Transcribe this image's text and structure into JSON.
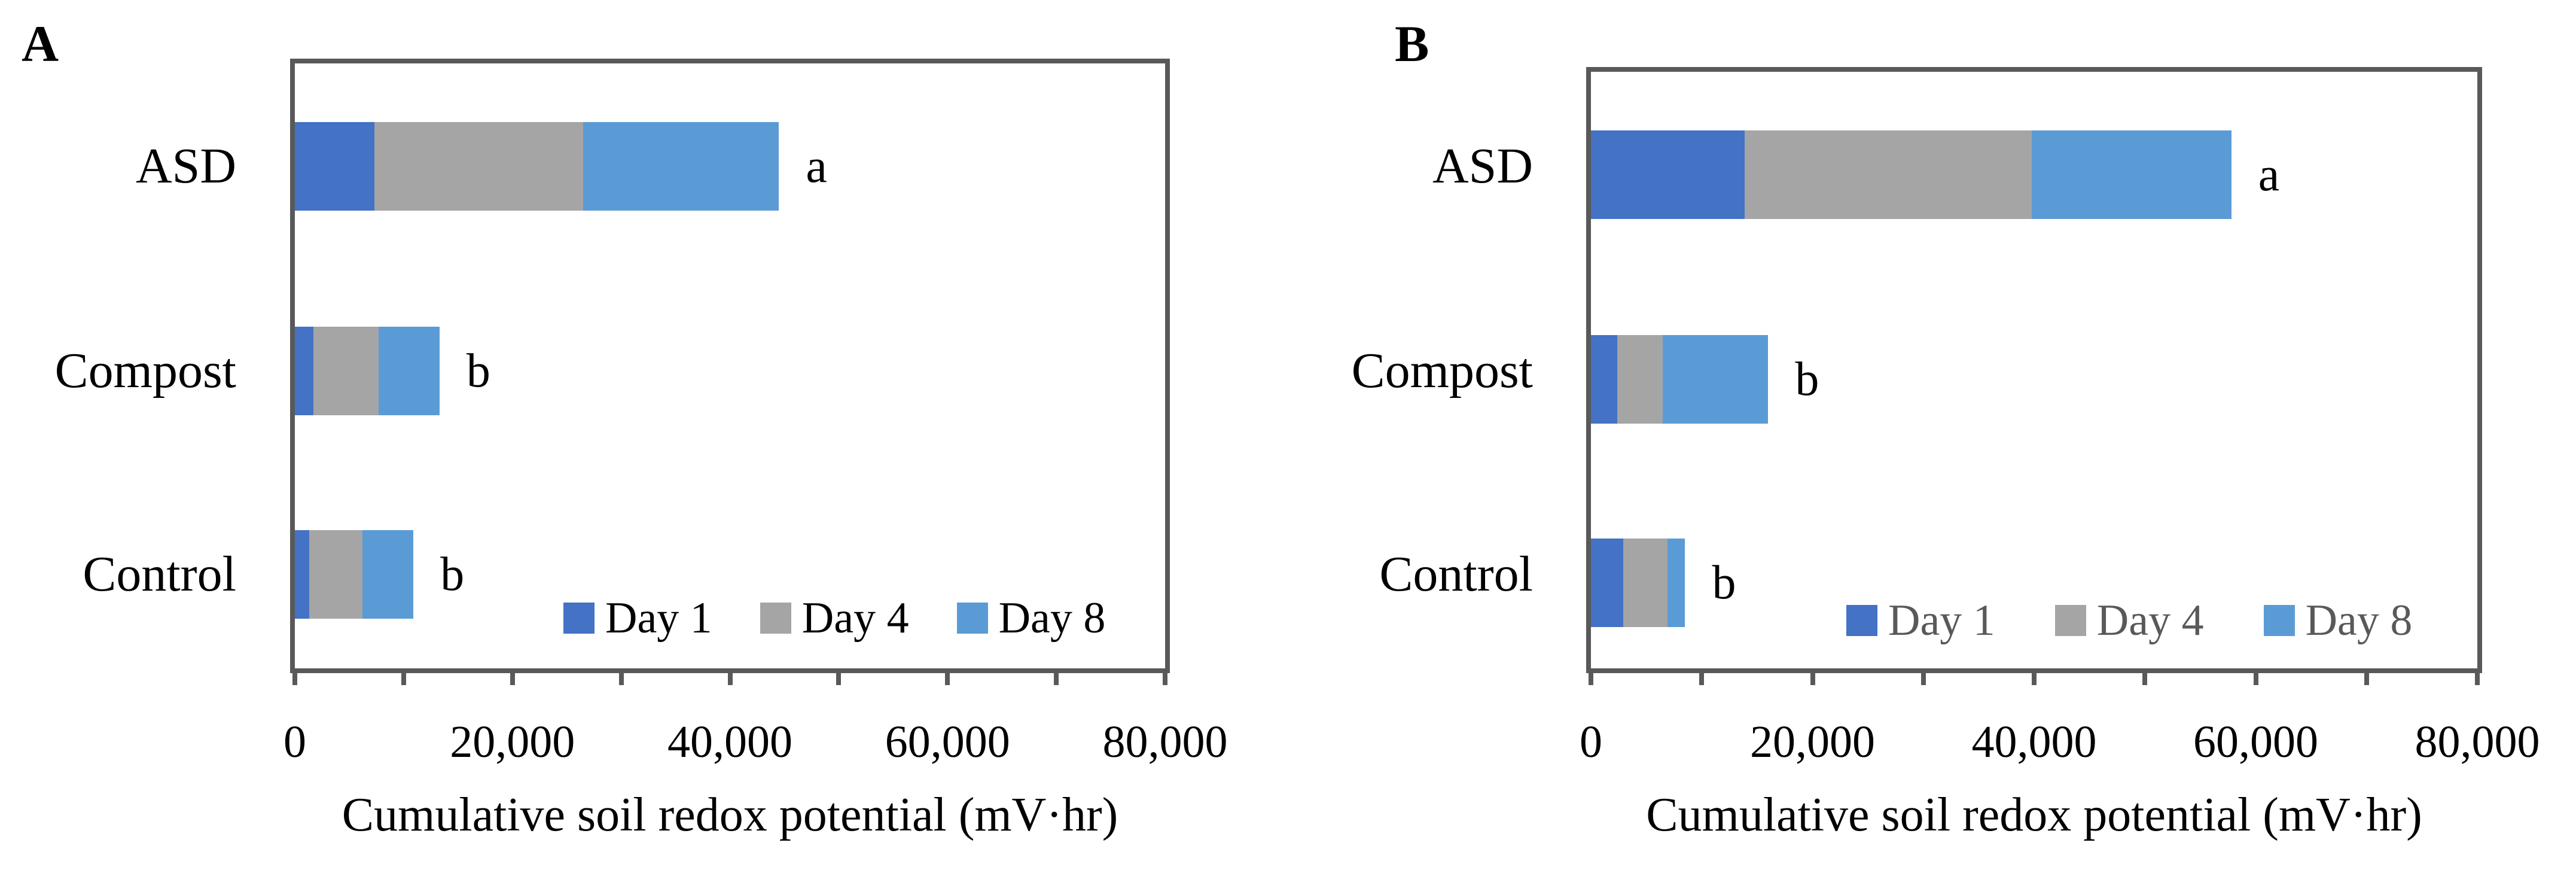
{
  "figure": {
    "panels": [
      {
        "letter": "A",
        "xlabel": "Cumulative soil redox potential (mV·hr)"
      },
      {
        "letter": "B",
        "xlabel": "Cumulative soil redox potential (mV·hr)"
      }
    ]
  },
  "legend": {
    "labels": [
      "Day 1",
      "Day 4",
      "Day 8"
    ]
  },
  "colors": {
    "day1": "#4472C4",
    "day4": "#A5A5A5",
    "day8": "#5B9BD5",
    "axis": "#595959",
    "legend_text_panel_a": "#000000",
    "legend_text_panel_b": "#595959",
    "sig_letter": "#000000",
    "background": "#FFFFFF"
  },
  "chart_data": [
    {
      "panel": "A",
      "type": "bar",
      "stacked": true,
      "orientation": "horizontal",
      "xlabel": "Cumulative soil redox potential (mV·hr)",
      "xlim": [
        0,
        80000
      ],
      "x_tick_labels": [
        "0",
        "20,000",
        "40,000",
        "60,000",
        "80,000"
      ],
      "minor_tick_step": 10000,
      "grid": false,
      "legend_position": "inside-bottom-right",
      "categories": [
        "ASD",
        "Compost",
        "Control"
      ],
      "series": [
        {
          "name": "Day 1",
          "values": [
            7300,
            1700,
            1300
          ]
        },
        {
          "name": "Day 4",
          "values": [
            19200,
            6000,
            4900
          ]
        },
        {
          "name": "Day 8",
          "values": [
            18000,
            5600,
            4700
          ]
        }
      ],
      "totals": [
        44500,
        13300,
        10900
      ],
      "sig_letters": [
        "a",
        "b",
        "b"
      ]
    },
    {
      "panel": "B",
      "type": "bar",
      "stacked": true,
      "orientation": "horizontal",
      "xlabel": "Cumulative soil redox potential (mV·hr)",
      "xlim": [
        0,
        80000
      ],
      "x_tick_labels": [
        "0",
        "20,000",
        "40,000",
        "60,000",
        "80,000"
      ],
      "minor_tick_step": 10000,
      "grid": false,
      "legend_position": "inside-bottom-right",
      "categories": [
        "ASD",
        "Compost",
        "Control"
      ],
      "series": [
        {
          "name": "Day 1",
          "values": [
            13900,
            2400,
            2900
          ]
        },
        {
          "name": "Day 4",
          "values": [
            25900,
            4100,
            4000
          ]
        },
        {
          "name": "Day 8",
          "values": [
            18000,
            9500,
            1600
          ]
        }
      ],
      "totals": [
        57800,
        16000,
        8500
      ],
      "sig_letters": [
        "a",
        "b",
        "b"
      ]
    }
  ]
}
